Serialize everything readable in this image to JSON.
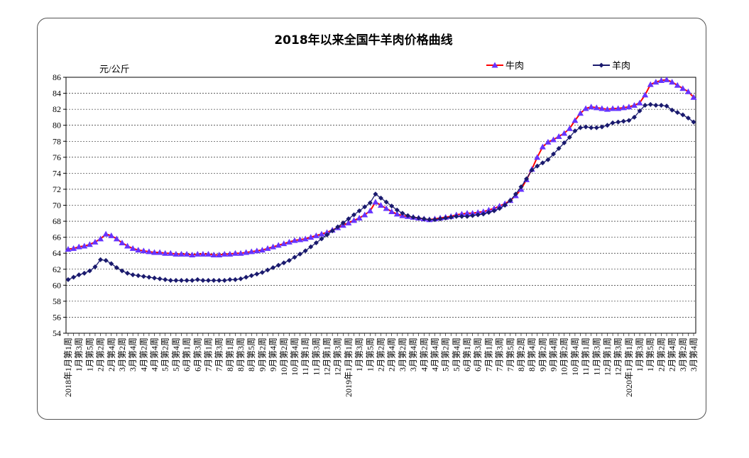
{
  "chart_data": {
    "type": "line",
    "title": "2018年以来全国牛羊肉价格曲线",
    "ylabel": "元/公斤",
    "categories": [
      "2018年1月第1周",
      null,
      "1月第3周",
      null,
      "1月第5周",
      null,
      "2月第2周",
      null,
      "2月第4周",
      null,
      "3月第2周",
      null,
      "3月第4周",
      null,
      "4月第2周",
      null,
      "4月第4周",
      null,
      "5月第2周",
      null,
      "5月第4周",
      null,
      "6月第1周",
      null,
      "6月第3周",
      null,
      "7月第1周",
      null,
      "7月第3周",
      null,
      "8月第1周",
      null,
      "8月第3周",
      null,
      "8月第5周",
      null,
      "9月第2周",
      null,
      "9月第4周",
      null,
      "10月第2周",
      null,
      "10月第4周",
      null,
      "11月第1周",
      null,
      "11月第3周",
      null,
      "12月第1周",
      null,
      "12月第3周",
      null,
      "2019年1月第1周",
      null,
      "1月第3周",
      null,
      "1月第5周",
      null,
      "2月第2周",
      null,
      "2月第4周",
      null,
      "3月第2周",
      null,
      "3月第4周",
      null,
      "4月第2周",
      null,
      "4月第4周",
      null,
      "5月第2周",
      null,
      "5月第4周",
      null,
      "6月第1周",
      null,
      "6月第3周",
      null,
      "7月第1周",
      null,
      "7月第3周",
      null,
      "7月第5周",
      null,
      "8月第2周",
      null,
      "8月第4周",
      null,
      "9月第2周",
      null,
      "9月第4周",
      null,
      "10月第2周",
      null,
      "10月第4周",
      null,
      "11月第1周",
      null,
      "11月第3周",
      null,
      "12月第1周",
      null,
      "12月第3周",
      null,
      "2020年1月第1周",
      null,
      "1月第3周",
      null,
      "1月第5周",
      null,
      "2月第2周",
      null,
      "2月第4周",
      null,
      "3月第2周",
      null,
      "3月第4周"
    ],
    "series": [
      {
        "name": "牛肉",
        "color": "#ff0000",
        "marker": "triangle",
        "marker_color": "#6633ff",
        "values": [
          64.5,
          64.6,
          64.8,
          64.9,
          65.1,
          65.4,
          65.8,
          66.4,
          66.2,
          65.8,
          65.3,
          64.9,
          64.6,
          64.4,
          64.3,
          64.2,
          64.1,
          64.1,
          64.0,
          64.0,
          63.9,
          63.9,
          63.9,
          63.8,
          63.9,
          63.9,
          63.9,
          63.8,
          63.8,
          63.9,
          63.9,
          64.0,
          64.0,
          64.1,
          64.2,
          64.3,
          64.4,
          64.6,
          64.8,
          65.0,
          65.2,
          65.4,
          65.6,
          65.7,
          65.8,
          66.0,
          66.2,
          66.4,
          66.6,
          66.9,
          67.2,
          67.5,
          67.8,
          68.1,
          68.4,
          68.8,
          69.3,
          70.4,
          70.0,
          69.6,
          69.2,
          68.9,
          68.7,
          68.6,
          68.5,
          68.4,
          68.3,
          68.2,
          68.3,
          68.4,
          68.5,
          68.6,
          68.8,
          68.9,
          69.0,
          69.0,
          69.1,
          69.2,
          69.4,
          69.6,
          69.9,
          70.2,
          70.6,
          71.2,
          72.0,
          73.2,
          74.5,
          76.0,
          77.3,
          77.9,
          78.2,
          78.6,
          79.0,
          79.6,
          80.6,
          81.5,
          82.1,
          82.3,
          82.2,
          82.1,
          82.0,
          82.1,
          82.1,
          82.2,
          82.3,
          82.5,
          82.8,
          83.8,
          85.1,
          85.4,
          85.6,
          85.7,
          85.4,
          85.0,
          84.6,
          84.2,
          83.5
        ]
      },
      {
        "name": "羊肉",
        "color": "#1a1a6e",
        "marker": "diamond",
        "marker_color": "#1a1a6e",
        "values": [
          60.7,
          61.0,
          61.3,
          61.5,
          61.8,
          62.3,
          63.2,
          63.1,
          62.7,
          62.2,
          61.8,
          61.5,
          61.3,
          61.2,
          61.1,
          61.0,
          60.9,
          60.8,
          60.7,
          60.6,
          60.6,
          60.6,
          60.6,
          60.6,
          60.7,
          60.6,
          60.6,
          60.6,
          60.6,
          60.6,
          60.7,
          60.7,
          60.8,
          61.0,
          61.2,
          61.4,
          61.6,
          61.9,
          62.2,
          62.5,
          62.8,
          63.1,
          63.5,
          63.9,
          64.3,
          64.8,
          65.3,
          65.8,
          66.3,
          66.8,
          67.3,
          67.8,
          68.3,
          68.8,
          69.3,
          69.8,
          70.3,
          71.4,
          70.9,
          70.4,
          69.9,
          69.4,
          69.0,
          68.7,
          68.5,
          68.4,
          68.3,
          68.2,
          68.2,
          68.3,
          68.4,
          68.5,
          68.6,
          68.6,
          68.6,
          68.7,
          68.8,
          68.9,
          69.1,
          69.3,
          69.6,
          70.0,
          70.6,
          71.4,
          72.3,
          73.3,
          74.4,
          74.9,
          75.3,
          75.7,
          76.4,
          77.1,
          77.8,
          78.5,
          79.3,
          79.7,
          79.8,
          79.7,
          79.7,
          79.8,
          80.0,
          80.3,
          80.4,
          80.5,
          80.6,
          81.0,
          81.8,
          82.5,
          82.6,
          82.5,
          82.5,
          82.4,
          81.9,
          81.6,
          81.3,
          80.9,
          80.4
        ]
      }
    ],
    "ylim": [
      54,
      86
    ],
    "yticks": [
      54,
      56,
      58,
      60,
      62,
      64,
      66,
      68,
      70,
      72,
      74,
      76,
      78,
      80,
      82,
      84,
      86
    ],
    "grid": true,
    "legend": "upper right"
  }
}
